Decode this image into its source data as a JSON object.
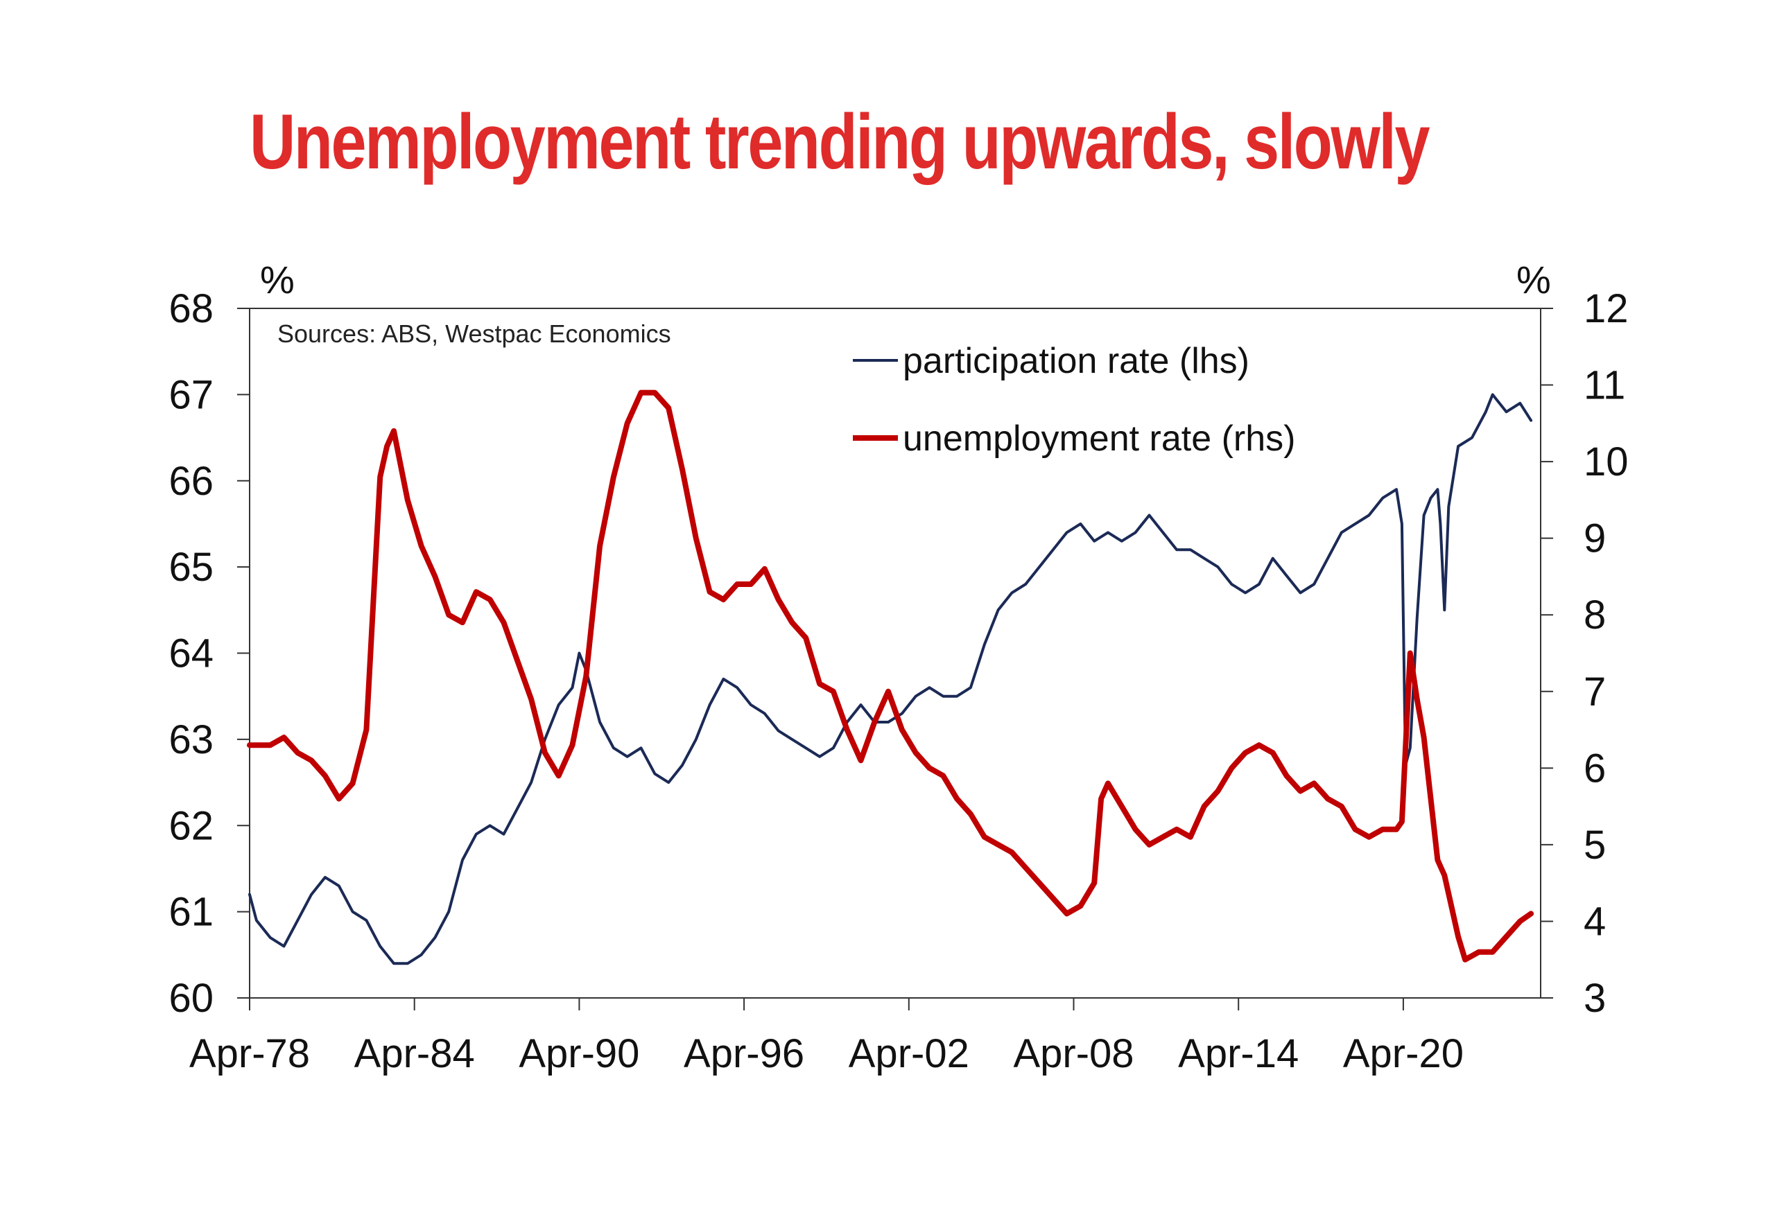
{
  "title": "Unemployment trending upwards, slowly",
  "chart_data": {
    "type": "line",
    "title": "Unemployment trending upwards, slowly",
    "source": "Sources: ABS, Westpac Economics",
    "left_axis": {
      "unit": "%",
      "ylim": [
        60,
        68
      ],
      "ticks": [
        "60",
        "61",
        "62",
        "63",
        "64",
        "65",
        "66",
        "67",
        "68"
      ]
    },
    "right_axis": {
      "unit": "%",
      "ylim": [
        3,
        12
      ],
      "ticks": [
        "3",
        "4",
        "5",
        "6",
        "7",
        "8",
        "9",
        "10",
        "11",
        "12"
      ]
    },
    "x_ticks": [
      "Apr-78",
      "Apr-84",
      "Apr-90",
      "Apr-96",
      "Apr-02",
      "Apr-08",
      "Apr-14",
      "Apr-20"
    ],
    "x_tick_years": [
      1978.25,
      1984.25,
      1990.25,
      1996.25,
      2002.25,
      2008.25,
      2014.25,
      2020.25
    ],
    "x_range": [
      1978.25,
      2025.25
    ],
    "series": [
      {
        "name": "participation rate (lhs)",
        "axis": "left",
        "color": "#1b2a56",
        "points": [
          [
            1978.25,
            61.2
          ],
          [
            1978.5,
            60.9
          ],
          [
            1979.0,
            60.7
          ],
          [
            1979.5,
            60.6
          ],
          [
            1980.0,
            60.9
          ],
          [
            1980.5,
            61.2
          ],
          [
            1981.0,
            61.4
          ],
          [
            1981.5,
            61.3
          ],
          [
            1982.0,
            61.0
          ],
          [
            1982.5,
            60.9
          ],
          [
            1983.0,
            60.6
          ],
          [
            1983.5,
            60.4
          ],
          [
            1984.0,
            60.4
          ],
          [
            1984.5,
            60.5
          ],
          [
            1985.0,
            60.7
          ],
          [
            1985.5,
            61.0
          ],
          [
            1986.0,
            61.6
          ],
          [
            1986.5,
            61.9
          ],
          [
            1987.0,
            62.0
          ],
          [
            1987.5,
            61.9
          ],
          [
            1988.0,
            62.2
          ],
          [
            1988.5,
            62.5
          ],
          [
            1989.0,
            63.0
          ],
          [
            1989.5,
            63.4
          ],
          [
            1990.0,
            63.6
          ],
          [
            1990.25,
            64.0
          ],
          [
            1990.5,
            63.8
          ],
          [
            1991.0,
            63.2
          ],
          [
            1991.5,
            62.9
          ],
          [
            1992.0,
            62.8
          ],
          [
            1992.5,
            62.9
          ],
          [
            1993.0,
            62.6
          ],
          [
            1993.5,
            62.5
          ],
          [
            1994.0,
            62.7
          ],
          [
            1994.5,
            63.0
          ],
          [
            1995.0,
            63.4
          ],
          [
            1995.5,
            63.7
          ],
          [
            1996.0,
            63.6
          ],
          [
            1996.5,
            63.4
          ],
          [
            1997.0,
            63.3
          ],
          [
            1997.5,
            63.1
          ],
          [
            1998.0,
            63.0
          ],
          [
            1998.5,
            62.9
          ],
          [
            1999.0,
            62.8
          ],
          [
            1999.5,
            62.9
          ],
          [
            2000.0,
            63.2
          ],
          [
            2000.5,
            63.4
          ],
          [
            2001.0,
            63.2
          ],
          [
            2001.5,
            63.2
          ],
          [
            2002.0,
            63.3
          ],
          [
            2002.5,
            63.5
          ],
          [
            2003.0,
            63.6
          ],
          [
            2003.5,
            63.5
          ],
          [
            2004.0,
            63.5
          ],
          [
            2004.5,
            63.6
          ],
          [
            2005.0,
            64.1
          ],
          [
            2005.5,
            64.5
          ],
          [
            2006.0,
            64.7
          ],
          [
            2006.5,
            64.8
          ],
          [
            2007.0,
            65.0
          ],
          [
            2007.5,
            65.2
          ],
          [
            2008.0,
            65.4
          ],
          [
            2008.5,
            65.5
          ],
          [
            2009.0,
            65.3
          ],
          [
            2009.5,
            65.4
          ],
          [
            2010.0,
            65.3
          ],
          [
            2010.5,
            65.4
          ],
          [
            2011.0,
            65.6
          ],
          [
            2011.5,
            65.4
          ],
          [
            2012.0,
            65.2
          ],
          [
            2012.5,
            65.2
          ],
          [
            2013.0,
            65.1
          ],
          [
            2013.5,
            65.0
          ],
          [
            2014.0,
            64.8
          ],
          [
            2014.5,
            64.7
          ],
          [
            2015.0,
            64.8
          ],
          [
            2015.5,
            65.1
          ],
          [
            2016.0,
            64.9
          ],
          [
            2016.5,
            64.7
          ],
          [
            2017.0,
            64.8
          ],
          [
            2017.5,
            65.1
          ],
          [
            2018.0,
            65.4
          ],
          [
            2018.5,
            65.5
          ],
          [
            2019.0,
            65.6
          ],
          [
            2019.5,
            65.8
          ],
          [
            2020.0,
            65.9
          ],
          [
            2020.2,
            65.5
          ],
          [
            2020.33,
            62.7
          ],
          [
            2020.5,
            62.9
          ],
          [
            2020.75,
            64.4
          ],
          [
            2021.0,
            65.6
          ],
          [
            2021.25,
            65.8
          ],
          [
            2021.5,
            65.9
          ],
          [
            2021.6,
            65.5
          ],
          [
            2021.75,
            64.5
          ],
          [
            2021.9,
            65.7
          ],
          [
            2022.25,
            66.4
          ],
          [
            2022.75,
            66.5
          ],
          [
            2023.25,
            66.8
          ],
          [
            2023.5,
            67.0
          ],
          [
            2024.0,
            66.8
          ],
          [
            2024.5,
            66.9
          ],
          [
            2024.9,
            66.7
          ]
        ]
      },
      {
        "name": "unemployment rate (rhs)",
        "axis": "right",
        "color": "#c00000",
        "points": [
          [
            1978.25,
            6.3
          ],
          [
            1979.0,
            6.3
          ],
          [
            1979.5,
            6.4
          ],
          [
            1980.0,
            6.2
          ],
          [
            1980.5,
            6.1
          ],
          [
            1981.0,
            5.9
          ],
          [
            1981.5,
            5.6
          ],
          [
            1982.0,
            5.8
          ],
          [
            1982.5,
            6.5
          ],
          [
            1983.0,
            9.8
          ],
          [
            1983.25,
            10.2
          ],
          [
            1983.5,
            10.4
          ],
          [
            1984.0,
            9.5
          ],
          [
            1984.5,
            8.9
          ],
          [
            1985.0,
            8.5
          ],
          [
            1985.5,
            8.0
          ],
          [
            1986.0,
            7.9
          ],
          [
            1986.5,
            8.3
          ],
          [
            1987.0,
            8.2
          ],
          [
            1987.5,
            7.9
          ],
          [
            1988.0,
            7.4
          ],
          [
            1988.5,
            6.9
          ],
          [
            1989.0,
            6.2
          ],
          [
            1989.5,
            5.9
          ],
          [
            1990.0,
            6.3
          ],
          [
            1990.5,
            7.2
          ],
          [
            1991.0,
            8.9
          ],
          [
            1991.5,
            9.8
          ],
          [
            1992.0,
            10.5
          ],
          [
            1992.5,
            10.9
          ],
          [
            1993.0,
            10.9
          ],
          [
            1993.5,
            10.7
          ],
          [
            1994.0,
            9.9
          ],
          [
            1994.5,
            9.0
          ],
          [
            1995.0,
            8.3
          ],
          [
            1995.5,
            8.2
          ],
          [
            1996.0,
            8.4
          ],
          [
            1996.5,
            8.4
          ],
          [
            1997.0,
            8.6
          ],
          [
            1997.5,
            8.2
          ],
          [
            1998.0,
            7.9
          ],
          [
            1998.5,
            7.7
          ],
          [
            1999.0,
            7.1
          ],
          [
            1999.5,
            7.0
          ],
          [
            2000.0,
            6.5
          ],
          [
            2000.5,
            6.1
          ],
          [
            2001.0,
            6.6
          ],
          [
            2001.5,
            7.0
          ],
          [
            2002.0,
            6.5
          ],
          [
            2002.5,
            6.2
          ],
          [
            2003.0,
            6.0
          ],
          [
            2003.5,
            5.9
          ],
          [
            2004.0,
            5.6
          ],
          [
            2004.5,
            5.4
          ],
          [
            2005.0,
            5.1
          ],
          [
            2005.5,
            5.0
          ],
          [
            2006.0,
            4.9
          ],
          [
            2006.5,
            4.7
          ],
          [
            2007.0,
            4.5
          ],
          [
            2007.5,
            4.3
          ],
          [
            2008.0,
            4.1
          ],
          [
            2008.5,
            4.2
          ],
          [
            2009.0,
            4.5
          ],
          [
            2009.25,
            5.6
          ],
          [
            2009.5,
            5.8
          ],
          [
            2010.0,
            5.5
          ],
          [
            2010.5,
            5.2
          ],
          [
            2011.0,
            5.0
          ],
          [
            2011.5,
            5.1
          ],
          [
            2012.0,
            5.2
          ],
          [
            2012.5,
            5.1
          ],
          [
            2013.0,
            5.5
          ],
          [
            2013.5,
            5.7
          ],
          [
            2014.0,
            6.0
          ],
          [
            2014.5,
            6.2
          ],
          [
            2015.0,
            6.3
          ],
          [
            2015.5,
            6.2
          ],
          [
            2016.0,
            5.9
          ],
          [
            2016.5,
            5.7
          ],
          [
            2017.0,
            5.8
          ],
          [
            2017.5,
            5.6
          ],
          [
            2018.0,
            5.5
          ],
          [
            2018.5,
            5.2
          ],
          [
            2019.0,
            5.1
          ],
          [
            2019.5,
            5.2
          ],
          [
            2020.0,
            5.2
          ],
          [
            2020.2,
            5.3
          ],
          [
            2020.5,
            7.5
          ],
          [
            2020.75,
            6.9
          ],
          [
            2021.0,
            6.4
          ],
          [
            2021.25,
            5.6
          ],
          [
            2021.5,
            4.8
          ],
          [
            2021.75,
            4.6
          ],
          [
            2022.0,
            4.2
          ],
          [
            2022.25,
            3.8
          ],
          [
            2022.5,
            3.5
          ],
          [
            2023.0,
            3.6
          ],
          [
            2023.5,
            3.6
          ],
          [
            2024.0,
            3.8
          ],
          [
            2024.5,
            4.0
          ],
          [
            2024.9,
            4.1
          ]
        ]
      }
    ]
  }
}
